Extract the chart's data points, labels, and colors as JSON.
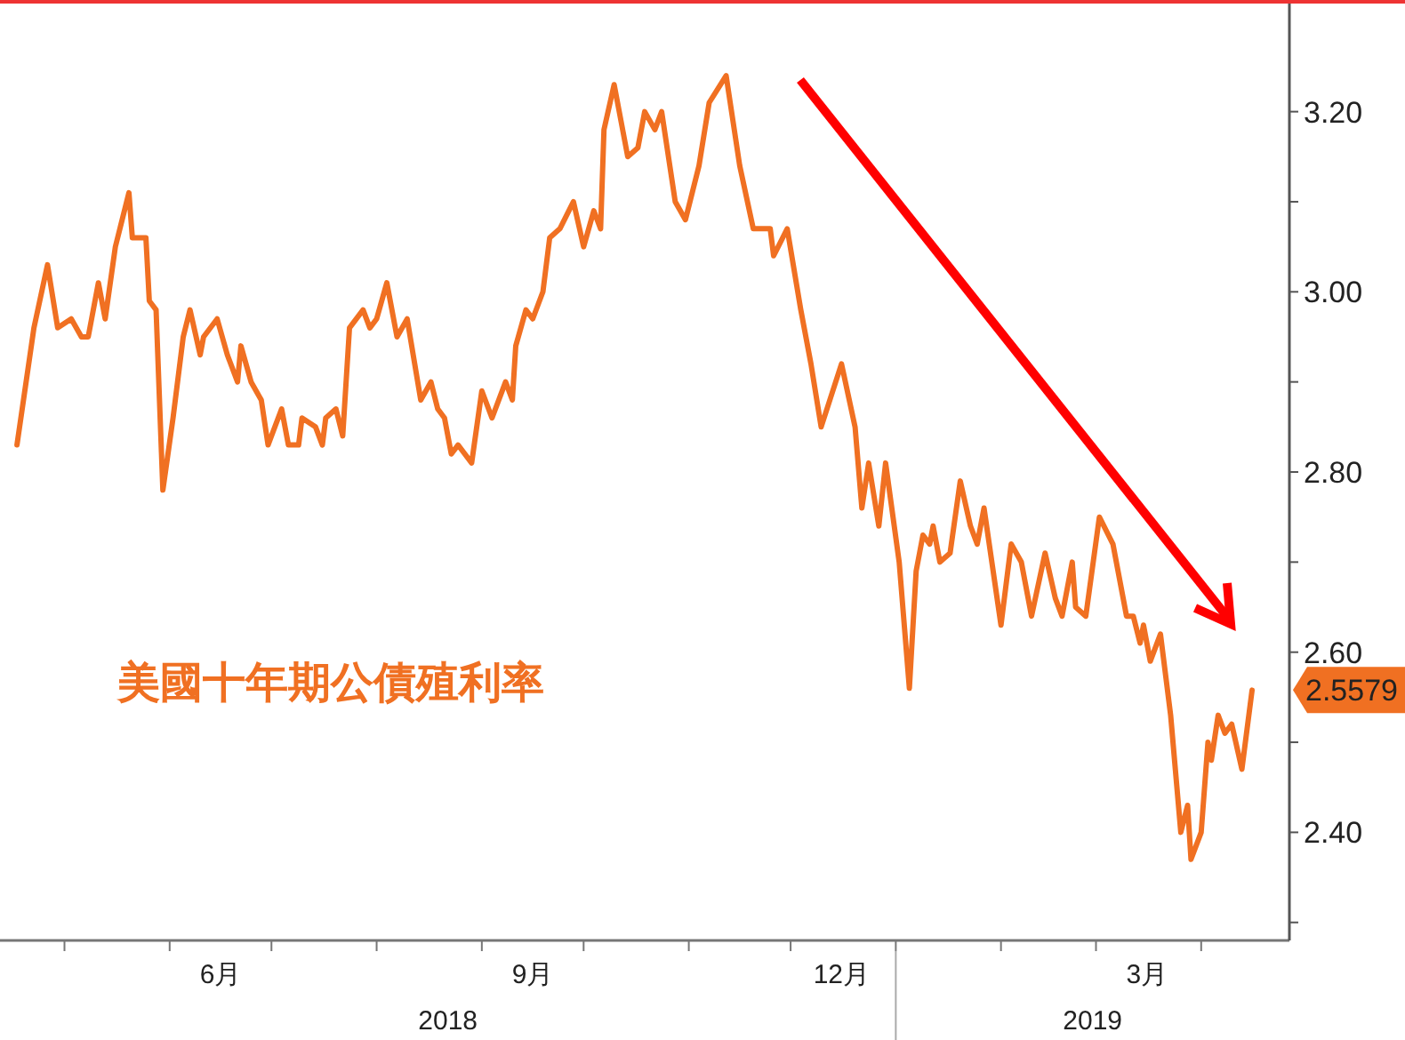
{
  "chart_data": {
    "type": "line",
    "x": [
      "2018-04-17",
      "2018-04-22",
      "2018-04-26",
      "2018-04-29",
      "2018-05-03",
      "2018-05-06",
      "2018-05-08",
      "2018-05-11",
      "2018-05-13",
      "2018-05-16",
      "2018-05-20",
      "2018-05-21",
      "2018-05-25",
      "2018-05-26",
      "2018-05-28",
      "2018-05-30",
      "2018-06-02",
      "2018-06-05",
      "2018-06-07",
      "2018-06-10",
      "2018-06-11",
      "2018-06-15",
      "2018-06-18",
      "2018-06-21",
      "2018-06-22",
      "2018-06-25",
      "2018-06-28",
      "2018-06-30",
      "2018-07-04",
      "2018-07-06",
      "2018-07-09",
      "2018-07-10",
      "2018-07-14",
      "2018-07-16",
      "2018-07-17",
      "2018-07-20",
      "2018-07-22",
      "2018-07-24",
      "2018-07-28",
      "2018-07-30",
      "2018-08-01",
      "2018-08-04",
      "2018-08-07",
      "2018-08-10",
      "2018-08-14",
      "2018-08-17",
      "2018-08-19",
      "2018-08-21",
      "2018-08-23",
      "2018-08-25",
      "2018-08-29",
      "2018-09-01",
      "2018-09-04",
      "2018-09-08",
      "2018-09-10",
      "2018-09-11",
      "2018-09-14",
      "2018-09-16",
      "2018-09-19",
      "2018-09-21",
      "2018-09-24",
      "2018-09-28",
      "2018-10-01",
      "2018-10-04",
      "2018-10-06",
      "2018-10-07",
      "2018-10-10",
      "2018-10-14",
      "2018-10-17",
      "2018-10-19",
      "2018-10-22",
      "2018-10-24",
      "2018-10-28",
      "2018-10-31",
      "2018-11-04",
      "2018-11-07",
      "2018-11-12",
      "2018-11-16",
      "2018-11-20",
      "2018-11-25",
      "2018-11-26",
      "2018-11-30",
      "2018-12-04",
      "2018-12-07",
      "2018-12-10",
      "2018-12-16",
      "2018-12-20",
      "2018-12-22",
      "2018-12-24",
      "2018-12-27",
      "2018-12-29",
      "2019-01-02",
      "2019-01-05",
      "2019-01-07",
      "2019-01-09",
      "2019-01-11",
      "2019-01-12",
      "2019-01-14",
      "2019-01-17",
      "2019-01-20",
      "2019-01-23",
      "2019-01-25",
      "2019-01-27",
      "2019-02-01",
      "2019-02-04",
      "2019-02-07",
      "2019-02-10",
      "2019-02-14",
      "2019-02-17",
      "2019-02-19",
      "2019-02-22",
      "2019-02-23",
      "2019-02-26",
      "2019-03-02",
      "2019-03-06",
      "2019-03-10",
      "2019-03-12",
      "2019-03-14",
      "2019-03-15",
      "2019-03-17",
      "2019-03-20",
      "2019-03-23",
      "2019-03-26",
      "2019-03-28",
      "2019-03-29",
      "2019-04-01",
      "2019-04-03",
      "2019-04-04",
      "2019-04-06",
      "2019-04-08",
      "2019-04-10",
      "2019-04-13",
      "2019-04-16"
    ],
    "series": [
      {
        "name": "美國十年期公債殖利率",
        "color": "#f07022",
        "values": [
          2.83,
          2.96,
          3.03,
          2.96,
          2.97,
          2.95,
          2.95,
          3.01,
          2.97,
          3.05,
          3.11,
          3.06,
          3.06,
          2.99,
          2.98,
          2.78,
          2.86,
          2.95,
          2.98,
          2.93,
          2.95,
          2.97,
          2.93,
          2.9,
          2.94,
          2.9,
          2.88,
          2.83,
          2.87,
          2.83,
          2.83,
          2.86,
          2.85,
          2.83,
          2.86,
          2.87,
          2.84,
          2.96,
          2.98,
          2.96,
          2.97,
          3.01,
          2.95,
          2.97,
          2.88,
          2.9,
          2.87,
          2.86,
          2.82,
          2.83,
          2.81,
          2.89,
          2.86,
          2.9,
          2.88,
          2.94,
          2.98,
          2.97,
          3.0,
          3.06,
          3.07,
          3.1,
          3.05,
          3.09,
          3.07,
          3.18,
          3.23,
          3.15,
          3.16,
          3.2,
          3.18,
          3.2,
          3.1,
          3.08,
          3.14,
          3.21,
          3.24,
          3.14,
          3.07,
          3.07,
          3.04,
          3.07,
          2.98,
          2.92,
          2.85,
          2.92,
          2.85,
          2.76,
          2.81,
          2.74,
          2.81,
          2.7,
          2.56,
          2.69,
          2.73,
          2.72,
          2.74,
          2.7,
          2.71,
          2.79,
          2.74,
          2.72,
          2.76,
          2.63,
          2.72,
          2.7,
          2.64,
          2.71,
          2.66,
          2.64,
          2.7,
          2.65,
          2.64,
          2.75,
          2.72,
          2.64,
          2.64,
          2.61,
          2.63,
          2.59,
          2.62,
          2.53,
          2.4,
          2.43,
          2.37,
          2.4,
          2.5,
          2.48,
          2.53,
          2.51,
          2.52,
          2.47,
          2.5579
        ],
        "value_labels": [
          null,
          null,
          null,
          null,
          null,
          null,
          null,
          null,
          null,
          null,
          null,
          null,
          null,
          null,
          null,
          null,
          null,
          null,
          null,
          null,
          null,
          null,
          null,
          null,
          null,
          null,
          null,
          null,
          null,
          null,
          null,
          null,
          null,
          null,
          null,
          null,
          null,
          null,
          null,
          null,
          null,
          null,
          null,
          null,
          null,
          null,
          null,
          null,
          null,
          null,
          null,
          null,
          null,
          null,
          null,
          null,
          null,
          null,
          null,
          null,
          null,
          null,
          null,
          null,
          null,
          null,
          null,
          null,
          null,
          null,
          null,
          null,
          null,
          null,
          null,
          null,
          null,
          null,
          null,
          null,
          null,
          null,
          null,
          null,
          null,
          null,
          null,
          null,
          null,
          null,
          null,
          null,
          null,
          null,
          null,
          null,
          null,
          null,
          null,
          null,
          null,
          null,
          null,
          null,
          null,
          null,
          null,
          null,
          null,
          null,
          null,
          null,
          null,
          null,
          null,
          null,
          null,
          null,
          null,
          null,
          null,
          null,
          null,
          null,
          null,
          null,
          null,
          null,
          null,
          null,
          null,
          null,
          "2.5579"
        ]
      }
    ],
    "xlim": [
      "2018-04-12",
      "2019-04-27"
    ],
    "xticks": [
      {
        "value": "2018-05-01",
        "label": null
      },
      {
        "value": "2018-06-01",
        "label": null
      },
      {
        "value": "2018-06-16",
        "label": "6月"
      },
      {
        "value": "2018-07-01",
        "label": null
      },
      {
        "value": "2018-08-01",
        "label": null
      },
      {
        "value": "2018-09-01",
        "label": null
      },
      {
        "value": "2018-09-16",
        "label": "9月"
      },
      {
        "value": "2018-10-01",
        "label": null
      },
      {
        "value": "2018-11-01",
        "label": null
      },
      {
        "value": "2018-12-01",
        "label": null
      },
      {
        "value": "2018-12-16",
        "label": "12月"
      },
      {
        "value": "2019-01-01",
        "label": null
      },
      {
        "value": "2019-02-01",
        "label": null
      },
      {
        "value": "2019-03-01",
        "label": null
      },
      {
        "value": "2019-03-16",
        "label": "3月"
      },
      {
        "value": "2019-04-01",
        "label": null
      }
    ],
    "ylim": [
      2.28,
      3.32
    ],
    "yticks": [
      {
        "value": 2.3,
        "label": null
      },
      {
        "value": 2.4,
        "label": "2.40"
      },
      {
        "value": 2.5,
        "label": null
      },
      {
        "value": 2.6,
        "label": "2.60"
      },
      {
        "value": 2.7,
        "label": null
      },
      {
        "value": 2.8,
        "label": "2.80"
      },
      {
        "value": 2.9,
        "label": null
      },
      {
        "value": 3.0,
        "label": "3.00"
      },
      {
        "value": 3.1,
        "label": null
      },
      {
        "value": 3.2,
        "label": "3.20"
      }
    ],
    "annotations": [
      "2018",
      "2019"
    ],
    "grid": false,
    "marker": "none",
    "line_style": "solid"
  }
}
